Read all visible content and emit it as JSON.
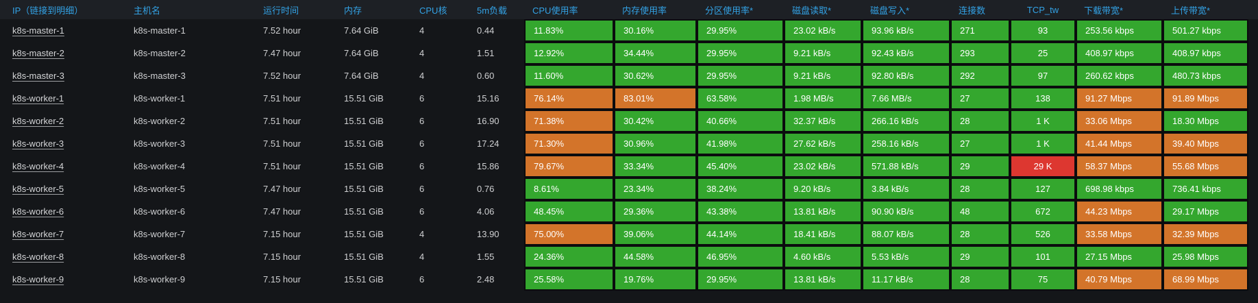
{
  "colors": {
    "green": "#34a72e",
    "orange": "#d3742a",
    "red": "#dd3730",
    "header_text": "#33a2e5"
  },
  "table": {
    "columns": [
      {
        "key": "ip",
        "label": "IP（链接到明细）",
        "link": true
      },
      {
        "key": "hostname",
        "label": "主机名"
      },
      {
        "key": "uptime",
        "label": "运行时间"
      },
      {
        "key": "memory",
        "label": "内存"
      },
      {
        "key": "cpu_cores",
        "label": "CPU核"
      },
      {
        "key": "load_5m",
        "label": "5m负载"
      },
      {
        "key": "cpu_usage",
        "label": "CPU使用率",
        "colored": true
      },
      {
        "key": "mem_usage",
        "label": "内存使用率",
        "colored": true
      },
      {
        "key": "partition_usage",
        "label": "分区使用率*",
        "colored": true
      },
      {
        "key": "disk_read",
        "label": "磁盘读取*",
        "colored": true
      },
      {
        "key": "disk_write",
        "label": "磁盘写入*",
        "colored": true
      },
      {
        "key": "connections",
        "label": "连接数",
        "colored": true
      },
      {
        "key": "tcp_tw",
        "label": "TCP_tw",
        "colored": true,
        "align": "center"
      },
      {
        "key": "download_bw",
        "label": "下载带宽*",
        "colored": true
      },
      {
        "key": "upload_bw",
        "label": "上传带宽*",
        "colored": true
      }
    ],
    "rows": [
      {
        "values": [
          "k8s-master-1",
          "k8s-master-1",
          "7.52 hour",
          "7.64 GiB",
          "4",
          "0.44",
          "11.83%",
          "30.16%",
          "29.95%",
          "23.02 kB/s",
          "93.96 kB/s",
          "271",
          "93",
          "253.56 kbps",
          "501.27 kbps"
        ],
        "colors": [
          "green",
          "green",
          "green",
          "green",
          "green",
          "green",
          "green",
          "green",
          "green"
        ]
      },
      {
        "values": [
          "k8s-master-2",
          "k8s-master-2",
          "7.47 hour",
          "7.64 GiB",
          "4",
          "1.51",
          "12.92%",
          "34.44%",
          "29.95%",
          "9.21 kB/s",
          "92.43 kB/s",
          "293",
          "25",
          "408.97 kbps",
          "408.97 kbps"
        ],
        "colors": [
          "green",
          "green",
          "green",
          "green",
          "green",
          "green",
          "green",
          "green",
          "green"
        ]
      },
      {
        "values": [
          "k8s-master-3",
          "k8s-master-3",
          "7.52 hour",
          "7.64 GiB",
          "4",
          "0.60",
          "11.60%",
          "30.62%",
          "29.95%",
          "9.21 kB/s",
          "92.80 kB/s",
          "292",
          "97",
          "260.62 kbps",
          "480.73 kbps"
        ],
        "colors": [
          "green",
          "green",
          "green",
          "green",
          "green",
          "green",
          "green",
          "green",
          "green"
        ]
      },
      {
        "values": [
          "k8s-worker-1",
          "k8s-worker-1",
          "7.51 hour",
          "15.51 GiB",
          "6",
          "15.16",
          "76.14%",
          "83.01%",
          "63.58%",
          "1.98 MB/s",
          "7.66 MB/s",
          "27",
          "138",
          "91.27 Mbps",
          "91.89 Mbps"
        ],
        "colors": [
          "orange",
          "orange",
          "green",
          "green",
          "green",
          "green",
          "green",
          "orange",
          "orange"
        ]
      },
      {
        "values": [
          "k8s-worker-2",
          "k8s-worker-2",
          "7.51 hour",
          "15.51 GiB",
          "6",
          "16.90",
          "71.38%",
          "30.42%",
          "40.66%",
          "32.37 kB/s",
          "266.16 kB/s",
          "28",
          "1 K",
          "33.06 Mbps",
          "18.30 Mbps"
        ],
        "colors": [
          "orange",
          "green",
          "green",
          "green",
          "green",
          "green",
          "green",
          "orange",
          "green"
        ]
      },
      {
        "values": [
          "k8s-worker-3",
          "k8s-worker-3",
          "7.51 hour",
          "15.51 GiB",
          "6",
          "17.24",
          "71.30%",
          "30.96%",
          "41.98%",
          "27.62 kB/s",
          "258.16 kB/s",
          "27",
          "1 K",
          "41.44 Mbps",
          "39.40 Mbps"
        ],
        "colors": [
          "orange",
          "green",
          "green",
          "green",
          "green",
          "green",
          "green",
          "orange",
          "orange"
        ]
      },
      {
        "values": [
          "k8s-worker-4",
          "k8s-worker-4",
          "7.51 hour",
          "15.51 GiB",
          "6",
          "15.86",
          "79.67%",
          "33.34%",
          "45.40%",
          "23.02 kB/s",
          "571.88 kB/s",
          "29",
          "29 K",
          "58.37 Mbps",
          "55.68 Mbps"
        ],
        "colors": [
          "orange",
          "green",
          "green",
          "green",
          "green",
          "green",
          "red",
          "orange",
          "orange"
        ]
      },
      {
        "values": [
          "k8s-worker-5",
          "k8s-worker-5",
          "7.47 hour",
          "15.51 GiB",
          "6",
          "0.76",
          "8.61%",
          "23.34%",
          "38.24%",
          "9.20 kB/s",
          "3.84 kB/s",
          "28",
          "127",
          "698.98 kbps",
          "736.41 kbps"
        ],
        "colors": [
          "green",
          "green",
          "green",
          "green",
          "green",
          "green",
          "green",
          "green",
          "green"
        ]
      },
      {
        "values": [
          "k8s-worker-6",
          "k8s-worker-6",
          "7.47 hour",
          "15.51 GiB",
          "6",
          "4.06",
          "48.45%",
          "29.36%",
          "43.38%",
          "13.81 kB/s",
          "90.90 kB/s",
          "48",
          "672",
          "44.23 Mbps",
          "29.17 Mbps"
        ],
        "colors": [
          "green",
          "green",
          "green",
          "green",
          "green",
          "green",
          "green",
          "orange",
          "green"
        ]
      },
      {
        "values": [
          "k8s-worker-7",
          "k8s-worker-7",
          "7.15 hour",
          "15.51 GiB",
          "4",
          "13.90",
          "75.00%",
          "39.06%",
          "44.14%",
          "18.41 kB/s",
          "88.07 kB/s",
          "28",
          "526",
          "33.58 Mbps",
          "32.39 Mbps"
        ],
        "colors": [
          "orange",
          "green",
          "green",
          "green",
          "green",
          "green",
          "green",
          "orange",
          "orange"
        ]
      },
      {
        "values": [
          "k8s-worker-8",
          "k8s-worker-8",
          "7.15 hour",
          "15.51 GiB",
          "4",
          "1.55",
          "24.36%",
          "44.58%",
          "46.95%",
          "4.60 kB/s",
          "5.53 kB/s",
          "29",
          "101",
          "27.15 Mbps",
          "25.98 Mbps"
        ],
        "colors": [
          "green",
          "green",
          "green",
          "green",
          "green",
          "green",
          "green",
          "green",
          "green"
        ]
      },
      {
        "values": [
          "k8s-worker-9",
          "k8s-worker-9",
          "7.15 hour",
          "15.51 GiB",
          "6",
          "2.48",
          "25.58%",
          "19.76%",
          "29.95%",
          "13.81 kB/s",
          "11.17 kB/s",
          "28",
          "75",
          "40.79 Mbps",
          "68.99 Mbps"
        ],
        "colors": [
          "green",
          "green",
          "green",
          "green",
          "green",
          "green",
          "green",
          "orange",
          "orange"
        ]
      }
    ]
  }
}
